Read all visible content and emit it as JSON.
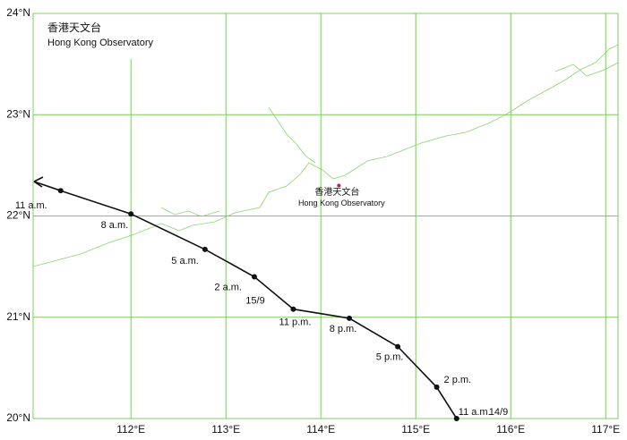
{
  "map": {
    "title_zh": "香港天文台",
    "title_en": "Hong Kong Observatory",
    "xlim": [
      110.97,
      117.13
    ],
    "ylim": [
      20,
      24
    ],
    "xticks": [
      {
        "value": 112,
        "label": "112°E"
      },
      {
        "value": 113,
        "label": "113°E"
      },
      {
        "value": 114,
        "label": "114°E"
      },
      {
        "value": 115,
        "label": "115°E"
      },
      {
        "value": 116,
        "label": "116°E"
      },
      {
        "value": 117,
        "label": "117°E"
      }
    ],
    "yticks": [
      {
        "value": 20,
        "label": "20°N"
      },
      {
        "value": 21,
        "label": "21°N"
      },
      {
        "value": 22,
        "label": "22°N"
      },
      {
        "value": 23,
        "label": "23°N"
      },
      {
        "value": 24,
        "label": "24°N"
      }
    ],
    "grid_color": "#7ccc5c",
    "observatory": {
      "lon": 114.19,
      "lat": 22.3,
      "color": "#c0185a",
      "label_zh": "香港天文台",
      "label_en": "Hong Kong Observatory"
    },
    "track": {
      "color": "#111111",
      "points": [
        {
          "lon": 111.26,
          "lat": 22.25,
          "label": "11 a.m."
        },
        {
          "lon": 112.0,
          "lat": 22.02,
          "label": "8 a.m."
        },
        {
          "lon": 112.78,
          "lat": 21.67,
          "label": "5 a.m."
        },
        {
          "lon": 113.3,
          "lat": 21.4,
          "label": "2 a.m.",
          "date": "15/9"
        },
        {
          "lon": 113.71,
          "lat": 21.08,
          "label": "11 p.m."
        },
        {
          "lon": 114.3,
          "lat": 20.99,
          "label": "8 p.m."
        },
        {
          "lon": 114.81,
          "lat": 20.71,
          "label": "5 p.m."
        },
        {
          "lon": 115.22,
          "lat": 20.31,
          "label": "2 p.m."
        },
        {
          "lon": 115.43,
          "lat": 20.0,
          "label": "11 a.m.",
          "date": "14/9"
        }
      ]
    }
  }
}
